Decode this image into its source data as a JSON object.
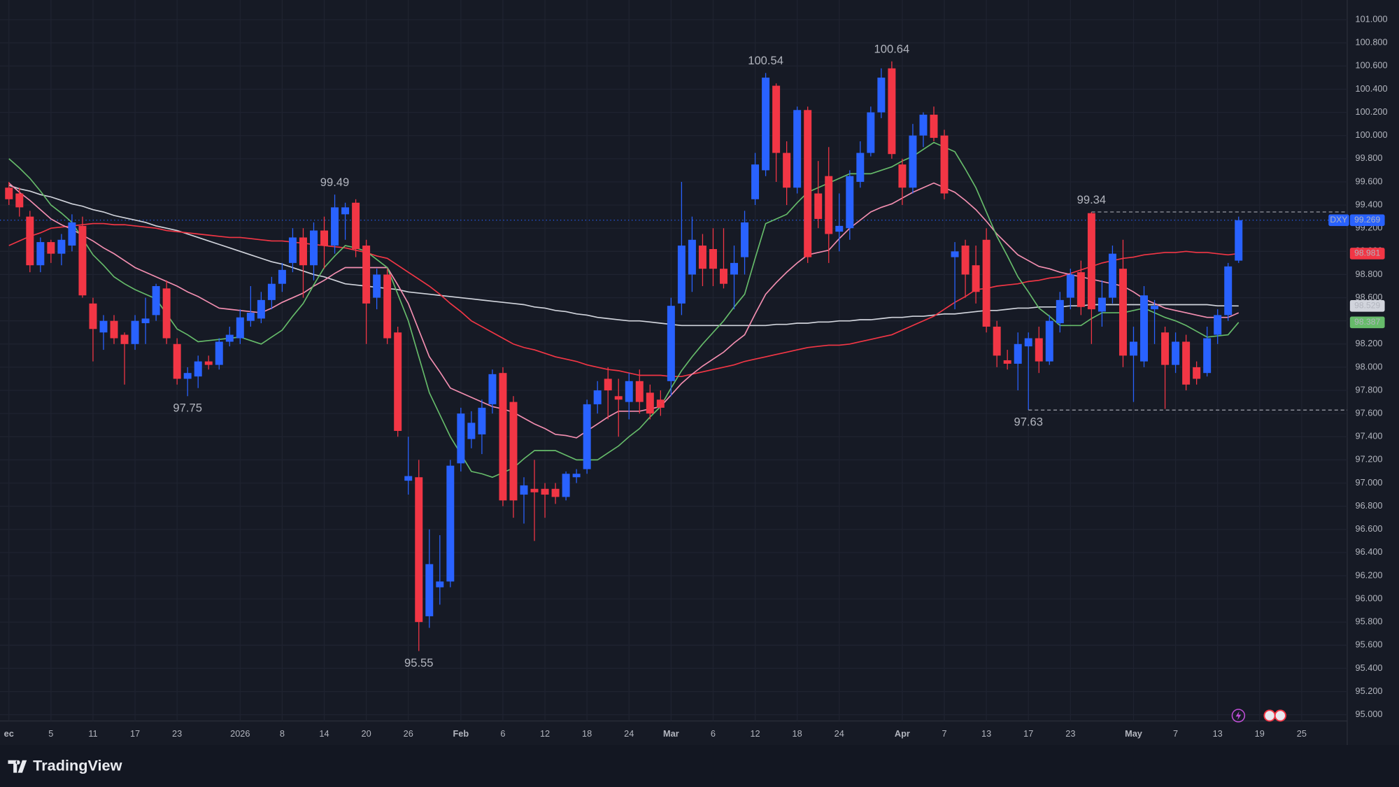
{
  "chart_data": {
    "type": "candlestick",
    "symbol": "DXY",
    "up_color": "#2962ff",
    "down_color": "#f23645",
    "grid": true,
    "ylim": [
      94.946,
      101.17
    ],
    "yticks": [
      {
        "value": 95,
        "label": "95.000"
      },
      {
        "value": 95.2,
        "label": "95.200"
      },
      {
        "value": 95.4,
        "label": "95.400"
      },
      {
        "value": 95.6,
        "label": "95.600"
      },
      {
        "value": 95.8,
        "label": "95.800"
      },
      {
        "value": 96,
        "label": "96.000"
      },
      {
        "value": 96.2,
        "label": "96.200"
      },
      {
        "value": 96.4,
        "label": "96.400"
      },
      {
        "value": 96.6,
        "label": "96.600"
      },
      {
        "value": 96.8,
        "label": "96.800"
      },
      {
        "value": 97,
        "label": "97.000"
      },
      {
        "value": 97.2,
        "label": "97.200"
      },
      {
        "value": 97.4,
        "label": "97.400"
      },
      {
        "value": 97.6,
        "label": "97.600"
      },
      {
        "value": 97.8,
        "label": "97.800"
      },
      {
        "value": 98,
        "label": "98.000"
      },
      {
        "value": 98.2,
        "label": "98.200"
      },
      {
        "value": 98.4,
        "label": "98.400"
      },
      {
        "value": 98.6,
        "label": "98.600"
      },
      {
        "value": 98.8,
        "label": "98.800"
      },
      {
        "value": 99,
        "label": "99.000"
      },
      {
        "value": 99.2,
        "label": "99.200"
      },
      {
        "value": 99.4,
        "label": "99.400"
      },
      {
        "value": 99.6,
        "label": "99.600"
      },
      {
        "value": 99.8,
        "label": "99.800"
      },
      {
        "value": 100,
        "label": "100.000"
      },
      {
        "value": 100.2,
        "label": "100.200"
      },
      {
        "value": 100.4,
        "label": "100.400"
      },
      {
        "value": 100.6,
        "label": "100.600"
      },
      {
        "value": 100.8,
        "label": "100.800"
      },
      {
        "value": 101,
        "label": "101.000"
      }
    ],
    "categories": [
      "ec",
      null,
      null,
      null,
      "5",
      null,
      null,
      null,
      "11",
      null,
      null,
      null,
      "17",
      null,
      null,
      null,
      "23",
      null,
      null,
      null,
      null,
      null,
      "2026",
      null,
      null,
      null,
      "8",
      null,
      null,
      null,
      "14",
      null,
      null,
      null,
      "20",
      null,
      null,
      null,
      "26",
      null,
      null,
      null,
      null,
      "Feb",
      null,
      null,
      null,
      "6",
      null,
      null,
      null,
      "12",
      null,
      null,
      null,
      "18",
      null,
      null,
      null,
      "24",
      null,
      null,
      null,
      "Mar",
      null,
      null,
      null,
      "6",
      null,
      null,
      null,
      "12",
      null,
      null,
      null,
      "18",
      null,
      null,
      null,
      "24",
      null,
      null,
      null,
      null,
      null,
      "Apr",
      null,
      null,
      null,
      "7",
      null,
      null,
      null,
      "13",
      null,
      null,
      null,
      "17",
      null,
      null,
      null,
      "23",
      null,
      null,
      null,
      null,
      null,
      "May",
      null,
      null,
      null,
      "7",
      null,
      null,
      null,
      "13",
      null,
      null,
      null,
      "19",
      null,
      null,
      null,
      "25"
    ],
    "open": [
      99.55,
      99.5,
      99.3,
      98.88,
      99.08,
      98.98,
      99.05,
      99.22,
      98.55,
      98.3,
      98.4,
      98.28,
      98.2,
      98.38,
      98.45,
      98.68,
      98.2,
      97.9,
      97.92,
      98.05,
      98.02,
      98.22,
      98.25,
      98.4,
      98.42,
      98.58,
      98.72,
      98.9,
      99.12,
      98.88,
      99.18,
      99.05,
      99.32,
      99.42,
      99.05,
      98.6,
      98.8,
      98.3,
      97.02,
      97.05,
      95.85,
      96.1,
      96.15,
      97.17,
      97.38,
      97.42,
      97.68,
      97.95,
      97.7,
      96.9,
      96.95,
      96.95,
      96.95,
      96.88,
      97.05,
      97.12,
      97.68,
      97.9,
      97.75,
      97.7,
      97.88,
      97.78,
      97.72,
      97.88,
      98.55,
      98.8,
      99.05,
      99.02,
      98.85,
      98.8,
      98.95,
      99.45,
      99.7,
      100.43,
      99.85,
      99.55,
      100.22,
      99.5,
      99.65,
      99.17,
      99.2,
      99.6,
      99.85,
      100.2,
      100.58,
      99.75,
      99.55,
      100.0,
      100.18,
      100.0,
      98.95,
      99.05,
      98.88,
      99.1,
      98.35,
      98.06,
      98.03,
      98.18,
      98.25,
      98.05,
      98.38,
      98.6,
      98.82,
      99.33,
      98.48,
      98.6,
      98.85,
      98.1,
      98.05,
      98.5,
      98.3,
      98.02,
      98.22,
      98.0,
      97.95,
      98.28,
      98.45,
      98.92,
      null,
      null,
      null,
      null,
      null,
      null
    ],
    "high": [
      99.6,
      99.55,
      99.35,
      99.12,
      99.1,
      99.15,
      99.32,
      99.3,
      98.6,
      98.45,
      98.45,
      98.3,
      98.45,
      98.6,
      98.72,
      98.75,
      98.25,
      98.0,
      98.1,
      98.1,
      98.25,
      98.35,
      98.5,
      98.7,
      98.65,
      98.78,
      98.9,
      99.2,
      99.2,
      99.25,
      99.3,
      99.49,
      99.42,
      99.45,
      99.1,
      98.85,
      98.85,
      98.35,
      97.4,
      97.2,
      96.6,
      96.55,
      97.2,
      97.65,
      97.62,
      97.72,
      97.98,
      98.0,
      97.75,
      97.05,
      97.2,
      97.0,
      97.0,
      97.1,
      97.12,
      97.72,
      97.88,
      98.0,
      97.9,
      97.95,
      97.98,
      97.85,
      97.8,
      98.6,
      99.6,
      99.3,
      99.15,
      99.2,
      99.2,
      99.05,
      99.35,
      99.85,
      100.54,
      100.45,
      99.95,
      100.25,
      100.25,
      99.78,
      99.9,
      99.5,
      99.7,
      99.95,
      100.25,
      100.58,
      100.64,
      99.8,
      100.1,
      100.2,
      100.25,
      100.05,
      99.08,
      99.1,
      99.05,
      99.2,
      98.4,
      98.15,
      98.3,
      98.3,
      98.35,
      98.45,
      98.65,
      98.85,
      98.92,
      99.34,
      98.75,
      99.05,
      99.1,
      98.35,
      98.7,
      98.58,
      98.35,
      98.3,
      98.28,
      98.05,
      98.35,
      98.5,
      98.9,
      99.3,
      null,
      null,
      null,
      null,
      null,
      null
    ],
    "low": [
      99.4,
      99.3,
      98.82,
      98.82,
      98.9,
      98.88,
      99.0,
      98.6,
      98.05,
      98.15,
      98.2,
      97.85,
      98.15,
      98.2,
      98.4,
      98.2,
      97.85,
      97.75,
      97.82,
      97.98,
      97.98,
      98.18,
      98.2,
      98.35,
      98.38,
      98.5,
      98.65,
      98.82,
      98.6,
      98.75,
      98.85,
      98.98,
      99.1,
      98.95,
      98.2,
      98.5,
      98.2,
      97.4,
      96.9,
      95.55,
      95.75,
      95.95,
      96.1,
      97.1,
      97.3,
      97.25,
      97.6,
      96.8,
      96.7,
      96.65,
      96.5,
      96.7,
      96.82,
      96.85,
      97.0,
      97.08,
      97.6,
      97.55,
      97.4,
      97.55,
      97.6,
      97.55,
      97.58,
      97.75,
      98.45,
      98.65,
      98.7,
      98.7,
      98.68,
      98.5,
      98.8,
      99.4,
      99.65,
      99.6,
      99.4,
      99.5,
      98.9,
      99.2,
      98.9,
      99.0,
      99.1,
      99.55,
      99.82,
      100.15,
      99.8,
      99.4,
      99.5,
      99.9,
      99.95,
      99.45,
      98.5,
      98.6,
      98.55,
      98.3,
      98.0,
      97.98,
      97.8,
      97.63,
      97.95,
      98.02,
      98.3,
      98.5,
      98.45,
      98.2,
      98.35,
      98.55,
      98.0,
      97.7,
      98.0,
      98.2,
      97.64,
      97.95,
      97.8,
      97.85,
      97.92,
      98.2,
      98.4,
      98.9,
      null,
      null,
      null,
      null,
      null,
      null
    ],
    "close": [
      99.45,
      99.38,
      98.88,
      99.08,
      98.98,
      99.1,
      99.25,
      98.62,
      98.33,
      98.4,
      98.25,
      98.2,
      98.4,
      98.42,
      98.7,
      98.25,
      97.9,
      97.95,
      98.05,
      98.02,
      98.22,
      98.28,
      98.43,
      98.47,
      98.58,
      98.72,
      98.84,
      99.12,
      98.88,
      99.18,
      99.05,
      99.38,
      99.38,
      99.02,
      98.55,
      98.8,
      98.25,
      97.45,
      97.06,
      95.8,
      96.3,
      96.15,
      97.15,
      97.6,
      97.52,
      97.65,
      97.94,
      96.85,
      96.85,
      96.98,
      96.92,
      96.9,
      96.88,
      97.08,
      97.08,
      97.68,
      97.8,
      97.8,
      97.72,
      97.88,
      97.7,
      97.6,
      97.65,
      98.53,
      99.05,
      99.1,
      98.85,
      98.85,
      98.72,
      98.9,
      99.25,
      99.75,
      100.5,
      99.85,
      99.55,
      100.22,
      98.95,
      99.28,
      99.15,
      99.22,
      99.65,
      99.85,
      100.2,
      100.5,
      99.84,
      99.55,
      100.0,
      100.18,
      99.98,
      99.5,
      99.0,
      98.8,
      98.65,
      98.35,
      98.1,
      98.03,
      98.2,
      98.25,
      98.05,
      98.4,
      98.58,
      98.8,
      98.52,
      98.5,
      98.6,
      98.98,
      98.1,
      98.22,
      98.62,
      98.53,
      98.02,
      98.22,
      97.85,
      97.9,
      98.25,
      98.45,
      98.87,
      99.269,
      null,
      null,
      null,
      null,
      null,
      null
    ],
    "series": [
      {
        "color": "#d1d4dc",
        "tag": true,
        "values": [
          99.57,
          99.54,
          99.52,
          99.49,
          99.47,
          99.44,
          99.41,
          99.39,
          99.36,
          99.34,
          99.31,
          99.29,
          99.27,
          99.25,
          99.22,
          99.2,
          99.18,
          99.15,
          99.12,
          99.09,
          99.06,
          99.03,
          99.0,
          98.97,
          98.94,
          98.91,
          98.89,
          98.86,
          98.83,
          98.8,
          98.78,
          98.75,
          98.72,
          98.71,
          98.7,
          98.69,
          98.68,
          98.67,
          98.65,
          98.64,
          98.63,
          98.62,
          98.61,
          98.6,
          98.59,
          98.58,
          98.57,
          98.56,
          98.55,
          98.54,
          98.52,
          98.51,
          98.49,
          98.48,
          98.46,
          98.45,
          98.43,
          98.42,
          98.41,
          98.4,
          98.4,
          98.39,
          98.38,
          98.37,
          98.36,
          98.36,
          98.36,
          98.36,
          98.36,
          98.36,
          98.36,
          98.36,
          98.36,
          98.37,
          98.37,
          98.38,
          98.38,
          98.39,
          98.39,
          98.4,
          98.4,
          98.41,
          98.41,
          98.42,
          98.43,
          98.43,
          98.44,
          98.44,
          98.45,
          98.46,
          98.46,
          98.47,
          98.48,
          98.49,
          98.49,
          98.5,
          98.51,
          98.51,
          98.52,
          98.52,
          98.52,
          98.53,
          98.53,
          98.54,
          98.54,
          98.54,
          98.54,
          98.54,
          98.54,
          98.54,
          98.54,
          98.54,
          98.54,
          98.54,
          98.54,
          98.53,
          98.53,
          98.529,
          null,
          null,
          null,
          null,
          null,
          null
        ]
      },
      {
        "color": "#f23645",
        "tag": true,
        "values": [
          99.05,
          99.09,
          99.13,
          99.16,
          99.2,
          99.21,
          99.22,
          99.23,
          99.24,
          99.24,
          99.23,
          99.23,
          99.22,
          99.21,
          99.2,
          99.18,
          99.17,
          99.16,
          99.15,
          99.14,
          99.13,
          99.12,
          99.12,
          99.11,
          99.1,
          99.09,
          99.09,
          99.08,
          99.07,
          99.06,
          99.05,
          99.04,
          99.03,
          99.01,
          98.99,
          98.96,
          98.94,
          98.88,
          98.82,
          98.76,
          98.7,
          98.63,
          98.55,
          98.48,
          98.4,
          98.35,
          98.3,
          98.25,
          98.2,
          98.17,
          98.15,
          98.12,
          98.09,
          98.07,
          98.05,
          98.02,
          98.0,
          97.98,
          97.97,
          97.95,
          97.93,
          97.93,
          97.93,
          97.92,
          97.92,
          97.94,
          97.96,
          97.98,
          98.0,
          98.02,
          98.05,
          98.07,
          98.09,
          98.11,
          98.13,
          98.15,
          98.17,
          98.18,
          98.19,
          98.19,
          98.2,
          98.22,
          98.24,
          98.26,
          98.28,
          98.32,
          98.36,
          98.4,
          98.44,
          98.5,
          98.56,
          98.61,
          98.67,
          98.68,
          98.7,
          98.71,
          98.72,
          98.74,
          98.75,
          98.77,
          98.78,
          98.81,
          98.84,
          98.87,
          98.9,
          98.92,
          98.94,
          98.95,
          98.97,
          98.98,
          98.99,
          98.99,
          99.0,
          98.99,
          98.99,
          98.98,
          98.97,
          98.981,
          null,
          null,
          null,
          null,
          null,
          null
        ]
      },
      {
        "color": "#f48fb1",
        "tag": false,
        "values": [
          99.59,
          99.51,
          99.44,
          99.36,
          99.28,
          99.23,
          99.19,
          99.14,
          99.09,
          99.03,
          98.98,
          98.92,
          98.86,
          98.82,
          98.78,
          98.74,
          98.7,
          98.65,
          98.61,
          98.56,
          98.51,
          98.5,
          98.49,
          98.48,
          98.47,
          98.51,
          98.56,
          98.6,
          98.64,
          98.7,
          98.75,
          98.81,
          98.86,
          98.86,
          98.86,
          98.86,
          98.86,
          98.71,
          98.55,
          98.32,
          98.09,
          97.96,
          97.82,
          97.78,
          97.74,
          97.7,
          97.66,
          97.64,
          97.61,
          97.56,
          97.51,
          97.47,
          97.42,
          97.41,
          97.39,
          97.45,
          97.51,
          97.57,
          97.62,
          97.62,
          97.62,
          97.64,
          97.66,
          97.76,
          97.86,
          97.94,
          98.01,
          98.07,
          98.13,
          98.21,
          98.28,
          98.46,
          98.63,
          98.73,
          98.82,
          98.9,
          98.97,
          98.99,
          99.01,
          99.11,
          99.2,
          99.27,
          99.34,
          99.38,
          99.41,
          99.46,
          99.51,
          99.55,
          99.59,
          99.55,
          99.51,
          99.44,
          99.36,
          99.26,
          99.15,
          99.06,
          98.97,
          98.92,
          98.87,
          98.85,
          98.82,
          98.8,
          98.78,
          98.76,
          98.74,
          98.72,
          98.7,
          98.65,
          98.59,
          98.55,
          98.51,
          98.49,
          98.47,
          98.45,
          98.43,
          98.43,
          98.43,
          98.47,
          null,
          null,
          null,
          null,
          null,
          null
        ]
      },
      {
        "color": "#66bb6a",
        "tag": true,
        "values": [
          99.8,
          99.72,
          99.63,
          99.52,
          99.4,
          99.33,
          99.25,
          99.11,
          98.97,
          98.88,
          98.78,
          98.72,
          98.67,
          98.63,
          98.59,
          98.46,
          98.33,
          98.28,
          98.22,
          98.23,
          98.24,
          98.25,
          98.26,
          98.23,
          98.2,
          98.26,
          98.32,
          98.44,
          98.55,
          98.71,
          98.86,
          98.96,
          99.05,
          99.03,
          99.0,
          98.93,
          98.86,
          98.63,
          98.4,
          98.09,
          97.78,
          97.59,
          97.4,
          97.25,
          97.1,
          97.08,
          97.05,
          97.09,
          97.13,
          97.21,
          97.28,
          97.28,
          97.28,
          97.24,
          97.2,
          97.2,
          97.2,
          97.26,
          97.32,
          97.4,
          97.47,
          97.57,
          97.66,
          97.82,
          97.97,
          98.09,
          98.2,
          98.3,
          98.4,
          98.52,
          98.63,
          98.94,
          99.24,
          99.28,
          99.32,
          99.42,
          99.51,
          99.55,
          99.59,
          99.63,
          99.67,
          99.67,
          99.67,
          99.7,
          99.73,
          99.78,
          99.82,
          99.88,
          99.94,
          99.9,
          99.86,
          99.71,
          99.55,
          99.34,
          99.13,
          98.96,
          98.78,
          98.65,
          98.51,
          98.44,
          98.36,
          98.36,
          98.36,
          98.42,
          98.47,
          98.47,
          98.47,
          98.49,
          98.51,
          98.47,
          98.43,
          98.4,
          98.36,
          98.31,
          98.26,
          98.27,
          98.28,
          98.387,
          null,
          null,
          null,
          null,
          null,
          null
        ]
      }
    ],
    "annotations": [
      {
        "value": 99.49,
        "kind": "high",
        "dashed": false
      },
      {
        "value": 100.54,
        "kind": "high",
        "dashed": false
      },
      {
        "value": 100.64,
        "kind": "high",
        "dashed": false
      },
      {
        "value": 99.34,
        "kind": "high",
        "dashed": true
      },
      {
        "value": 97.75,
        "kind": "low",
        "dashed": false
      },
      {
        "value": 95.55,
        "kind": "low",
        "dashed": false
      },
      {
        "value": 97.63,
        "kind": "low",
        "dashed": true
      }
    ]
  },
  "footer": {
    "brand": "TradingView"
  }
}
